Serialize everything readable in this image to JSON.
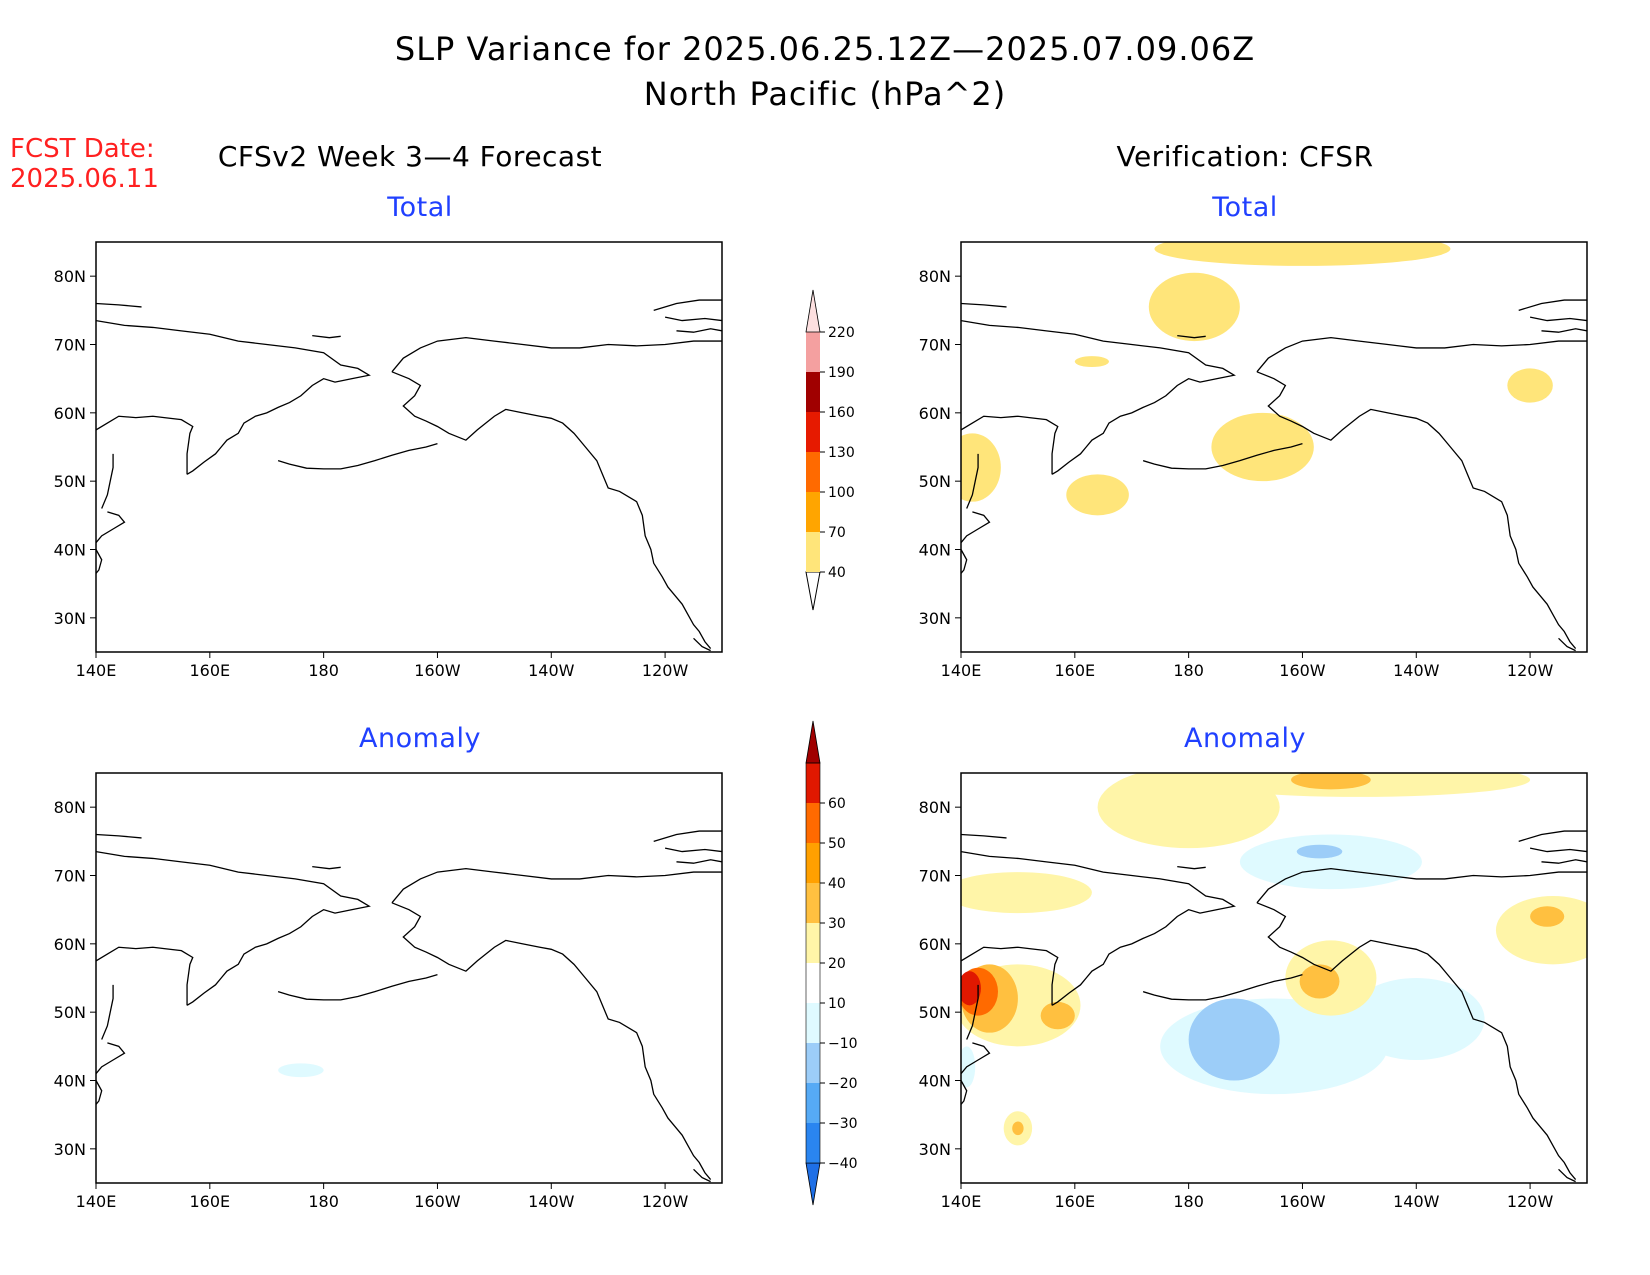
{
  "title_line1": "SLP Variance for 2025.06.25.12Z—2025.07.09.06Z",
  "title_line2": "North Pacific (hPa^2)",
  "fcst_label": "FCST Date:",
  "fcst_date": "2025.06.11",
  "left_column_title": "CFSv2 Week 3—4 Forecast",
  "right_column_title": "Verification: CFSR",
  "panels": {
    "top_left": "Total",
    "top_right": "Total",
    "bottom_left": "Anomaly",
    "bottom_right": "Anomaly"
  },
  "x_ticks": [
    "140E",
    "160E",
    "180",
    "160W",
    "140W",
    "120W"
  ],
  "y_ticks": [
    "80N",
    "70N",
    "60N",
    "50N",
    "40N",
    "30N"
  ],
  "map_extent": {
    "lon": [
      140,
      250
    ],
    "lat": [
      25,
      85
    ]
  },
  "total_colorbar": {
    "levels": [
      "40",
      "70",
      "100",
      "130",
      "160",
      "190",
      "220"
    ],
    "colors": [
      "#ffe57a",
      "#ffa500",
      "#ff6a00",
      "#e61a00",
      "#a00000",
      "#f4a0a0",
      "#fde0e0"
    ]
  },
  "anomaly_colorbar": {
    "levels": [
      "−40",
      "−30",
      "−20",
      "−10",
      "10",
      "20",
      "30",
      "40",
      "50",
      "60"
    ],
    "colors": [
      "#1e6fe6",
      "#2a85f0",
      "#56aaf5",
      "#9ccdf8",
      "#dffaff",
      "#ffffff",
      "#fff5a8",
      "#ffc040",
      "#ffa000",
      "#ff6a00",
      "#e01800",
      "#a00000"
    ]
  }
}
